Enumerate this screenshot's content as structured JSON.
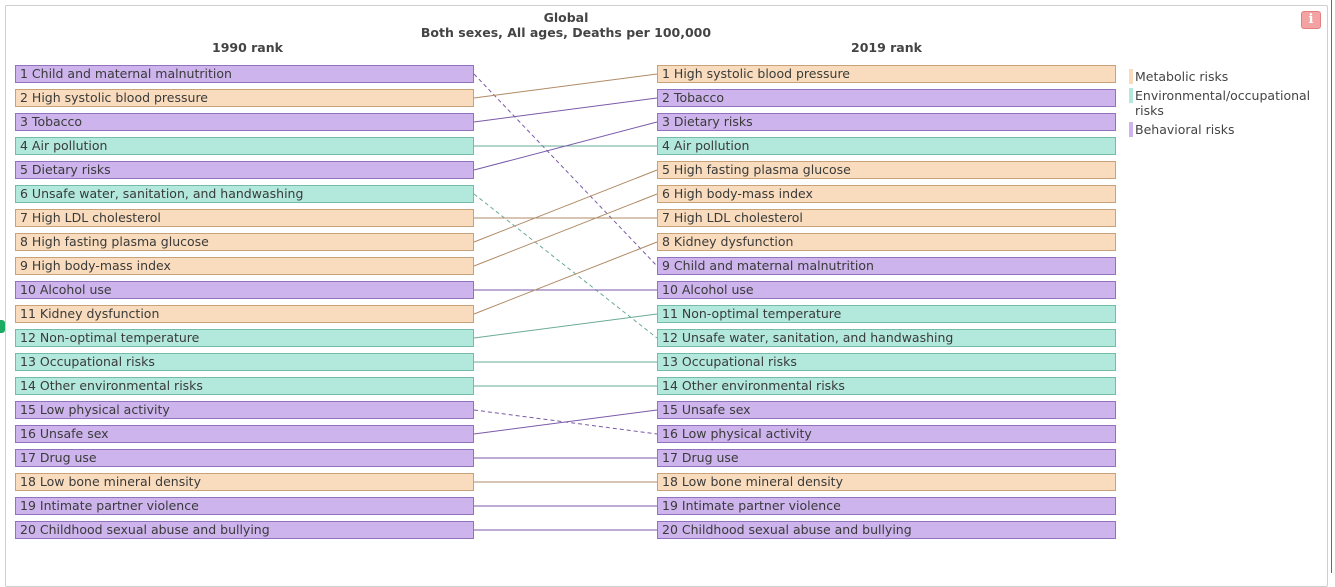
{
  "header": {
    "title": "Global",
    "subtitle": "Both sexes, All ages, Deaths per 100,000",
    "info_icon": "i"
  },
  "chart_data": {
    "type": "table",
    "title": "Global",
    "subtitle": "Both sexes, All ages, Deaths per 100,000",
    "left_label": "1990 rank",
    "right_label": "2019 rank",
    "colors": {
      "Metabolic": "#f9dcbd",
      "Environmental": "#b2e9dc",
      "Behavioral": "#cdb4ec",
      "line_Metabolic": "#b08a66",
      "line_Environmental": "#6aab98",
      "line_Behavioral": "#7a5aa8"
    },
    "legend": [
      {
        "key": "Metabolic",
        "label": "Metabolic risks"
      },
      {
        "key": "Environmental",
        "label": "Environmental/occupational risks"
      },
      {
        "key": "Behavioral",
        "label": "Behavioral risks"
      }
    ],
    "left": [
      {
        "label": "1 Child and maternal malnutrition",
        "cat": "Behavioral"
      },
      {
        "label": "2 High systolic blood pressure",
        "cat": "Metabolic"
      },
      {
        "label": "3 Tobacco",
        "cat": "Behavioral"
      },
      {
        "label": "4 Air pollution",
        "cat": "Environmental"
      },
      {
        "label": "5 Dietary risks",
        "cat": "Behavioral"
      },
      {
        "label": "6 Unsafe water, sanitation, and handwashing",
        "cat": "Environmental"
      },
      {
        "label": "7 High LDL cholesterol",
        "cat": "Metabolic"
      },
      {
        "label": "8 High fasting plasma glucose",
        "cat": "Metabolic"
      },
      {
        "label": "9 High body-mass index",
        "cat": "Metabolic"
      },
      {
        "label": "10 Alcohol use",
        "cat": "Behavioral"
      },
      {
        "label": "11 Kidney dysfunction",
        "cat": "Metabolic"
      },
      {
        "label": "12 Non-optimal temperature",
        "cat": "Environmental"
      },
      {
        "label": "13 Occupational risks",
        "cat": "Environmental"
      },
      {
        "label": "14 Other environmental risks",
        "cat": "Environmental"
      },
      {
        "label": "15 Low physical activity",
        "cat": "Behavioral"
      },
      {
        "label": "16 Unsafe sex",
        "cat": "Behavioral"
      },
      {
        "label": "17 Drug use",
        "cat": "Behavioral"
      },
      {
        "label": "18 Low bone mineral density",
        "cat": "Metabolic"
      },
      {
        "label": "19 Intimate partner violence",
        "cat": "Behavioral"
      },
      {
        "label": "20 Childhood sexual abuse and bullying",
        "cat": "Behavioral"
      }
    ],
    "right": [
      {
        "label": "1 High systolic blood pressure",
        "cat": "Metabolic"
      },
      {
        "label": "2 Tobacco",
        "cat": "Behavioral"
      },
      {
        "label": "3 Dietary risks",
        "cat": "Behavioral"
      },
      {
        "label": "4 Air pollution",
        "cat": "Environmental"
      },
      {
        "label": "5 High fasting plasma glucose",
        "cat": "Metabolic"
      },
      {
        "label": "6 High body-mass index",
        "cat": "Metabolic"
      },
      {
        "label": "7 High LDL cholesterol",
        "cat": "Metabolic"
      },
      {
        "label": "8 Kidney dysfunction",
        "cat": "Metabolic"
      },
      {
        "label": "9 Child and maternal malnutrition",
        "cat": "Behavioral"
      },
      {
        "label": "10 Alcohol use",
        "cat": "Behavioral"
      },
      {
        "label": "11 Non-optimal temperature",
        "cat": "Environmental"
      },
      {
        "label": "12 Unsafe water, sanitation, and handwashing",
        "cat": "Environmental"
      },
      {
        "label": "13 Occupational risks",
        "cat": "Environmental"
      },
      {
        "label": "14 Other environmental risks",
        "cat": "Environmental"
      },
      {
        "label": "15 Unsafe sex",
        "cat": "Behavioral"
      },
      {
        "label": "16 Low physical activity",
        "cat": "Behavioral"
      },
      {
        "label": "17 Drug use",
        "cat": "Behavioral"
      },
      {
        "label": "18 Low bone mineral density",
        "cat": "Metabolic"
      },
      {
        "label": "19 Intimate partner violence",
        "cat": "Behavioral"
      },
      {
        "label": "20 Childhood sexual abuse and bullying",
        "cat": "Behavioral"
      }
    ],
    "links": [
      {
        "from": 1,
        "to": 9,
        "dashed": true
      },
      {
        "from": 2,
        "to": 1,
        "dashed": false
      },
      {
        "from": 3,
        "to": 2,
        "dashed": false
      },
      {
        "from": 4,
        "to": 4,
        "dashed": false
      },
      {
        "from": 5,
        "to": 3,
        "dashed": false
      },
      {
        "from": 6,
        "to": 12,
        "dashed": true
      },
      {
        "from": 7,
        "to": 7,
        "dashed": false
      },
      {
        "from": 8,
        "to": 5,
        "dashed": false
      },
      {
        "from": 9,
        "to": 6,
        "dashed": false
      },
      {
        "from": 10,
        "to": 10,
        "dashed": false
      },
      {
        "from": 11,
        "to": 8,
        "dashed": false
      },
      {
        "from": 12,
        "to": 11,
        "dashed": false
      },
      {
        "from": 13,
        "to": 13,
        "dashed": false
      },
      {
        "from": 14,
        "to": 14,
        "dashed": false
      },
      {
        "from": 15,
        "to": 16,
        "dashed": true
      },
      {
        "from": 16,
        "to": 15,
        "dashed": false
      },
      {
        "from": 17,
        "to": 17,
        "dashed": false
      },
      {
        "from": 18,
        "to": 18,
        "dashed": false
      },
      {
        "from": 19,
        "to": 19,
        "dashed": false
      },
      {
        "from": 20,
        "to": 20,
        "dashed": false
      }
    ]
  }
}
